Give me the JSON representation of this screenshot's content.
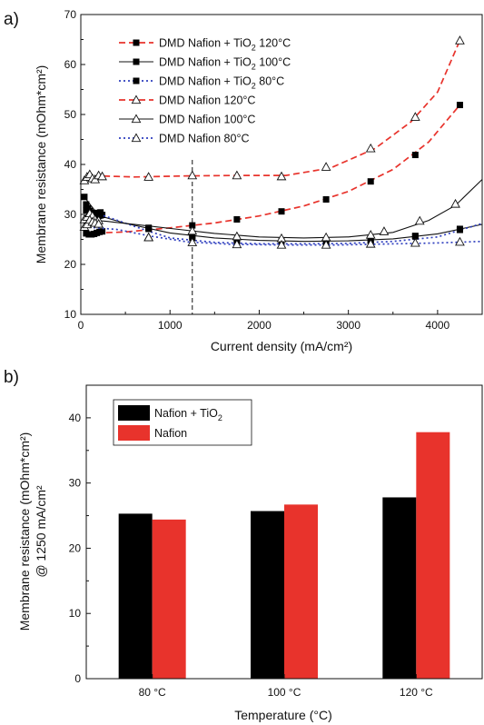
{
  "figure": {
    "panel_a_label": "a)",
    "panel_b_label": "b)"
  },
  "chart_data": [
    {
      "type": "line",
      "panel": "a)",
      "xlabel": "Current density (mA/cm²)",
      "ylabel": "Membrane resistance (mOhm*cm²)",
      "xlim": [
        0,
        4500
      ],
      "ylim": [
        10,
        70
      ],
      "xticks": [
        "0",
        "1000",
        "2000",
        "3000",
        "4000"
      ],
      "yticks": [
        "10",
        "20",
        "30",
        "40",
        "50",
        "60",
        "70"
      ],
      "grid": false,
      "legend_position": "top-left",
      "annotations": [
        {
          "type": "vertical-dashed-line",
          "x": 1250
        }
      ],
      "series": [
        {
          "name": "DMD Nafion + TiO2 120°C",
          "legend": {
            "pre": "DMD Nafion + TiO",
            "sub": "2",
            "post": " 120°C"
          },
          "marker": "filled-square",
          "line": "dashed",
          "color": "#e8332c",
          "points": [
            [
              60,
              26.2
            ],
            [
              90,
              26.0
            ],
            [
              120,
              26.0
            ],
            [
              150,
              26.1
            ],
            [
              180,
              26.3
            ],
            [
              210,
              26.5
            ],
            [
              240,
              26.6
            ],
            [
              760,
              27.3
            ],
            [
              1250,
              27.8
            ],
            [
              1750,
              29.0
            ],
            [
              2250,
              30.6
            ],
            [
              2750,
              33.0
            ],
            [
              3250,
              36.6
            ],
            [
              3750,
              41.9
            ],
            [
              4250,
              51.9
            ]
          ],
          "curve": [
            [
              60,
              26.2
            ],
            [
              500,
              26.5
            ],
            [
              1000,
              27.3
            ],
            [
              1500,
              28.3
            ],
            [
              2000,
              29.7
            ],
            [
              2500,
              31.7
            ],
            [
              3000,
              34.6
            ],
            [
              3500,
              39.0
            ],
            [
              3900,
              44.5
            ],
            [
              4250,
              51.9
            ]
          ]
        },
        {
          "name": "DMD Nafion + TiO2 100°C",
          "legend": {
            "pre": "DMD Nafion + TiO",
            "sub": "2",
            "post": " 100°C"
          },
          "marker": "filled-square",
          "line": "solid",
          "color": "#111111",
          "points": [
            [
              40,
              33.5
            ],
            [
              60,
              32.0
            ],
            [
              80,
              31.2
            ],
            [
              100,
              30.7
            ],
            [
              120,
              30.3
            ],
            [
              140,
              30.0
            ],
            [
              160,
              29.9
            ],
            [
              180,
              29.8
            ],
            [
              200,
              29.7
            ],
            [
              220,
              29.8
            ],
            [
              240,
              29.9
            ],
            [
              760,
              27.3
            ],
            [
              1250,
              25.7
            ],
            [
              1750,
              24.9
            ],
            [
              2250,
              24.6
            ],
            [
              2750,
              24.5
            ],
            [
              3250,
              24.8
            ],
            [
              3750,
              25.7
            ],
            [
              4250,
              27.1
            ]
          ],
          "curve": [
            [
              40,
              33.5
            ],
            [
              200,
              29.8
            ],
            [
              500,
              28.2
            ],
            [
              1000,
              26.3
            ],
            [
              1500,
              25.3
            ],
            [
              2000,
              24.8
            ],
            [
              2500,
              24.6
            ],
            [
              3000,
              24.7
            ],
            [
              3500,
              25.1
            ],
            [
              4000,
              26.1
            ],
            [
              4500,
              28.0
            ]
          ]
        },
        {
          "name": "DMD Nafion + TiO2 80°C",
          "legend": {
            "pre": "DMD Nafion + TiO",
            "sub": "2",
            "post": " 80°C"
          },
          "marker": "filled-square",
          "line": "dotted",
          "color": "#2f3fbf",
          "points": [
            [
              60,
              30.8
            ],
            [
              100,
              30.4
            ],
            [
              140,
              30.2
            ],
            [
              180,
              30.3
            ],
            [
              220,
              30.4
            ],
            [
              760,
              27.1
            ],
            [
              1250,
              25.3
            ],
            [
              1750,
              24.6
            ],
            [
              2250,
              24.4
            ],
            [
              2750,
              24.4
            ],
            [
              3250,
              24.7
            ],
            [
              3750,
              25.6
            ],
            [
              4250,
              26.9
            ]
          ],
          "curve": [
            [
              60,
              30.8
            ],
            [
              300,
              29.5
            ],
            [
              700,
              27.0
            ],
            [
              1000,
              25.3
            ],
            [
              1500,
              24.4
            ],
            [
              2000,
              24.1
            ],
            [
              2500,
              24.1
            ],
            [
              3000,
              24.2
            ],
            [
              3500,
              24.6
            ],
            [
              4000,
              25.5
            ],
            [
              4500,
              28.2
            ]
          ]
        },
        {
          "name": "DMD Nafion 120°C",
          "legend": {
            "pre": "DMD Nafion 120°C",
            "sub": "",
            "post": ""
          },
          "marker": "open-triangle",
          "line": "dashed",
          "color": "#e8332c",
          "points": [
            [
              40,
              36.8
            ],
            [
              70,
              37.5
            ],
            [
              100,
              38.0
            ],
            [
              130,
              37.2
            ],
            [
              160,
              37.0
            ],
            [
              200,
              37.8
            ],
            [
              240,
              37.6
            ],
            [
              760,
              37.5
            ],
            [
              1250,
              37.8
            ],
            [
              1750,
              37.8
            ],
            [
              2250,
              37.6
            ],
            [
              2750,
              39.5
            ],
            [
              3250,
              43.2
            ],
            [
              3750,
              49.5
            ],
            [
              4250,
              64.8
            ]
          ],
          "curve": [
            [
              40,
              36.8
            ],
            [
              200,
              37.7
            ],
            [
              600,
              37.5
            ],
            [
              1200,
              37.7
            ],
            [
              1800,
              37.8
            ],
            [
              2300,
              37.8
            ],
            [
              2800,
              39.3
            ],
            [
              3300,
              43.2
            ],
            [
              3700,
              48.5
            ],
            [
              4000,
              54.5
            ],
            [
              4250,
              64.8
            ]
          ]
        },
        {
          "name": "DMD Nafion 100°C",
          "legend": {
            "pre": "DMD Nafion 100°C",
            "sub": "",
            "post": ""
          },
          "marker": "open-triangle",
          "line": "solid",
          "color": "#111111",
          "points": [
            [
              40,
              29.0
            ],
            [
              70,
              29.5
            ],
            [
              100,
              30.2
            ],
            [
              130,
              29.7
            ],
            [
              160,
              29.0
            ],
            [
              200,
              28.8
            ],
            [
              760,
              25.4
            ],
            [
              1250,
              26.7
            ],
            [
              1750,
              25.6
            ],
            [
              2250,
              25.2
            ],
            [
              2750,
              25.4
            ],
            [
              3250,
              25.9
            ],
            [
              3400,
              26.6
            ],
            [
              3800,
              28.7
            ],
            [
              4200,
              32.1
            ]
          ],
          "curve": [
            [
              40,
              29.0
            ],
            [
              300,
              28.6
            ],
            [
              700,
              27.8
            ],
            [
              1100,
              27.0
            ],
            [
              1500,
              26.2
            ],
            [
              2000,
              25.5
            ],
            [
              2500,
              25.3
            ],
            [
              3000,
              25.5
            ],
            [
              3500,
              26.4
            ],
            [
              3900,
              28.8
            ],
            [
              4200,
              31.8
            ],
            [
              4500,
              37.0
            ]
          ]
        },
        {
          "name": "DMD Nafion 80°C",
          "legend": {
            "pre": "DMD Nafion 80°C",
            "sub": "",
            "post": ""
          },
          "marker": "open-triangle",
          "line": "dotted",
          "color": "#2f3fbf",
          "points": [
            [
              40,
              27.5
            ],
            [
              70,
              28.0
            ],
            [
              100,
              28.9
            ],
            [
              130,
              28.5
            ],
            [
              160,
              28.3
            ],
            [
              200,
              28.1
            ],
            [
              760,
              25.4
            ],
            [
              1250,
              24.4
            ],
            [
              1750,
              24.0
            ],
            [
              2250,
              23.9
            ],
            [
              2750,
              23.9
            ],
            [
              3250,
              24.1
            ],
            [
              3750,
              24.3
            ],
            [
              4250,
              24.5
            ]
          ],
          "curve": [
            [
              40,
              27.5
            ],
            [
              400,
              27.0
            ],
            [
              800,
              25.6
            ],
            [
              1200,
              24.5
            ],
            [
              1700,
              24.0
            ],
            [
              2300,
              23.9
            ],
            [
              2900,
              23.9
            ],
            [
              3500,
              24.1
            ],
            [
              4000,
              24.3
            ],
            [
              4500,
              24.6
            ]
          ]
        }
      ]
    },
    {
      "type": "bar",
      "panel": "b)",
      "categories": [
        "80 °C",
        "100 °C",
        "120 °C"
      ],
      "xlabel": "Temperature (°C)",
      "ylabel_line1": "Membrane resistance (mOhm*cm²)",
      "ylabel_line2": "@ 1250 mA/cm²",
      "ylim": [
        0,
        45
      ],
      "yticks": [
        "0",
        "10",
        "20",
        "30",
        "40"
      ],
      "grid": false,
      "legend_position": "top-left",
      "series": [
        {
          "name": "Nafion + TiO2",
          "legend": {
            "pre": "Nafion + TiO",
            "sub": "2",
            "post": ""
          },
          "color": "#000000",
          "values": [
            25.3,
            25.7,
            27.8
          ]
        },
        {
          "name": "Nafion",
          "legend": {
            "pre": "Nafion",
            "sub": "",
            "post": ""
          },
          "color": "#e8332c",
          "values": [
            24.4,
            26.7,
            37.8
          ]
        }
      ]
    }
  ]
}
